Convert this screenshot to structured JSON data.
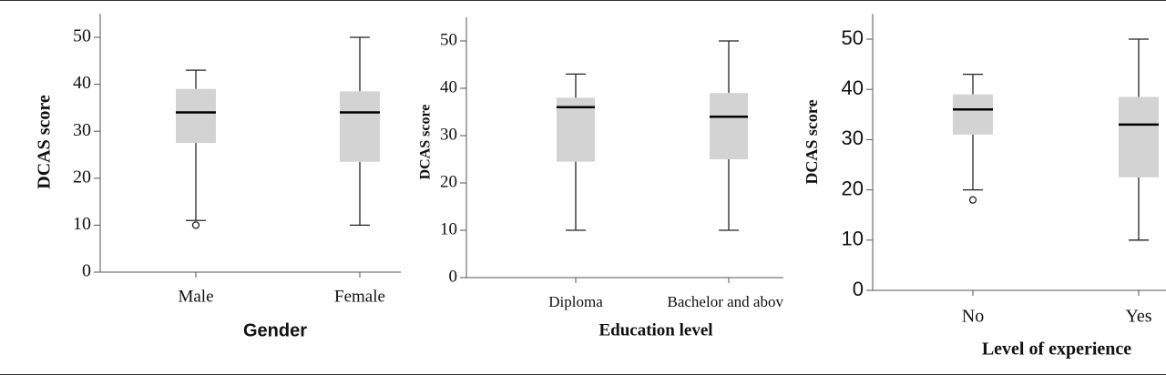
{
  "chart_data": [
    {
      "type": "box",
      "x_label": "Gender",
      "y_label": "DCAS score",
      "categories": [
        "Male",
        "Female"
      ],
      "boxes": [
        {
          "min": 11,
          "q1": 27.5,
          "median": 34,
          "q3": 39,
          "max": 43,
          "outliers": [
            10
          ]
        },
        {
          "min": 10,
          "q1": 23.5,
          "median": 34,
          "q3": 38.5,
          "max": 50,
          "outliers": []
        }
      ],
      "ylim": [
        0,
        55
      ],
      "yticks": [
        0,
        10,
        20,
        30,
        40,
        50
      ],
      "box_color": "#d3d3d3"
    },
    {
      "type": "box",
      "x_label": "Education level",
      "y_label": "DCAS score",
      "categories": [
        "Diploma",
        "Bachelor and above"
      ],
      "boxes": [
        {
          "min": 10,
          "q1": 24.5,
          "median": 36,
          "q3": 38,
          "max": 43,
          "outliers": []
        },
        {
          "min": 10,
          "q1": 25,
          "median": 34,
          "q3": 39,
          "max": 50,
          "outliers": []
        }
      ],
      "ylim": [
        0,
        55
      ],
      "yticks": [
        0,
        10,
        20,
        30,
        40,
        50
      ],
      "box_color": "#d3d3d3"
    },
    {
      "type": "box",
      "x_label": "Level of experience",
      "y_label": "DCAS score",
      "categories": [
        "No",
        "Yes"
      ],
      "boxes": [
        {
          "min": 20,
          "q1": 31,
          "median": 36,
          "q3": 39,
          "max": 43,
          "outliers": [
            18
          ]
        },
        {
          "min": 10,
          "q1": 22.5,
          "median": 33,
          "q3": 38.5,
          "max": 50,
          "outliers": []
        }
      ],
      "ylim": [
        0,
        55
      ],
      "yticks": [
        0,
        10,
        20,
        30,
        40,
        50
      ],
      "box_color": "#d3d3d3"
    }
  ]
}
